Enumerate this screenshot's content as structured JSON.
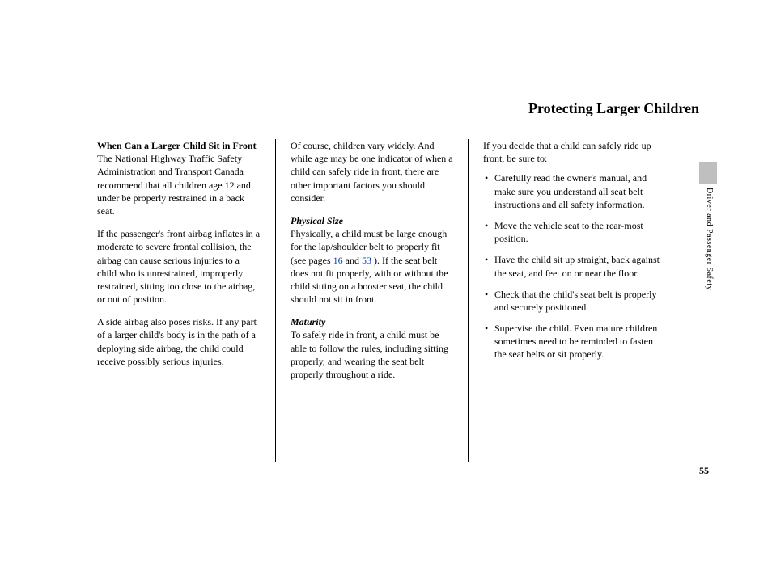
{
  "title": "Protecting Larger Children",
  "side_label": "Driver and Passenger Safety",
  "page_number": "55",
  "col1": {
    "heading": "When Can a Larger Child Sit in Front",
    "p1": "The National Highway Traffic Safety Administration and Transport Canada recommend that all children age 12 and under be properly restrained in a back seat.",
    "p2": "If the passenger's front airbag inflates in a moderate to severe frontal collision, the airbag can cause serious injuries to a child who is unrestrained, improperly restrained, sitting too close to the airbag, or out of position.",
    "p3": "A side airbag also poses risks. If any part of a larger child's body is in the path of a deploying side airbag, the child could receive possibly serious injuries."
  },
  "col2": {
    "p1": "Of course, children vary widely. And while age may be one indicator of when a child can safely ride in front, there are other important factors you should consider.",
    "sub1": "Physical Size",
    "p2a": "Physically, a child must be large enough for the lap/shoulder belt to properly fit (see pages ",
    "link1": "16",
    "p2b": " and ",
    "link2": "53",
    "p2c": " ). If the seat belt does not fit properly, with or without the child sitting on a booster seat, the child should not sit in front.",
    "sub2": "Maturity",
    "p3": "To safely ride in front, a child must be able to follow the rules, including sitting properly, and wearing the seat belt properly throughout a ride."
  },
  "col3": {
    "p1": "If you decide that a child can safely ride up front, be sure to:",
    "b1": "Carefully read the owner's manual, and make sure you understand all seat belt instructions and all safety information.",
    "b2": "Move the vehicle seat to the rear-most position.",
    "b3": "Have the child sit up straight, back against the seat, and feet on or near the floor.",
    "b4": "Check that the child's seat belt is properly and securely positioned.",
    "b5": "Supervise the child. Even mature children sometimes need to be reminded to fasten the seat belts or sit properly."
  }
}
